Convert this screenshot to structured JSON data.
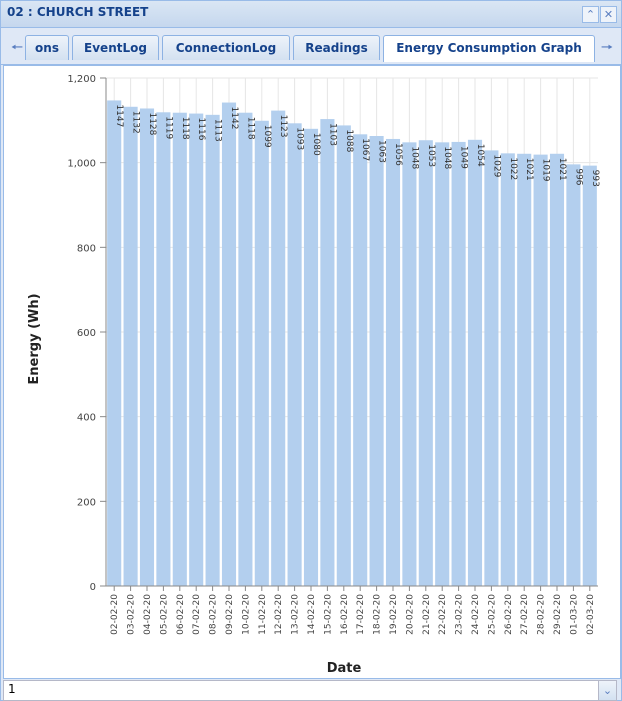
{
  "window": {
    "title": "02 : CHURCH STREET",
    "collapse_icon": "double-chevron-up-icon",
    "close_icon": "close-icon"
  },
  "tabs": {
    "scroll_left_icon": "arrow-left-icon",
    "scroll_right_icon": "arrow-right-icon",
    "items": [
      {
        "label": "ons",
        "active": false
      },
      {
        "label": "EventLog",
        "active": false
      },
      {
        "label": "ConnectionLog",
        "active": false
      },
      {
        "label": "Readings",
        "active": false
      },
      {
        "label": "Energy Consumption Graph",
        "active": true
      }
    ]
  },
  "chart_data": {
    "type": "bar",
    "xlabel": "Date",
    "ylabel": "Energy (Wh)",
    "ylim": [
      0,
      1200
    ],
    "yticks": [
      0,
      200,
      400,
      600,
      800,
      "1,000",
      "1,200"
    ],
    "bar_color": "#b3cfee",
    "categories": [
      "02-02-20",
      "03-02-20",
      "04-02-20",
      "05-02-20",
      "06-02-20",
      "07-02-20",
      "08-02-20",
      "09-02-20",
      "10-02-20",
      "11-02-20",
      "12-02-20",
      "13-02-20",
      "14-02-20",
      "15-02-20",
      "16-02-20",
      "17-02-20",
      "18-02-20",
      "19-02-20",
      "20-02-20",
      "21-02-20",
      "22-02-20",
      "23-02-20",
      "24-02-20",
      "25-02-20",
      "26-02-20",
      "27-02-20",
      "28-02-20",
      "29-02-20",
      "01-03-20",
      "02-03-20"
    ],
    "values": [
      1147,
      1132,
      1128,
      1119,
      1118,
      1116,
      1113,
      1142,
      1118,
      1099,
      1123,
      1093,
      1080,
      1103,
      1088,
      1067,
      1063,
      1056,
      1048,
      1053,
      1048,
      1049,
      1054,
      1029,
      1022,
      1021,
      1019,
      1021,
      996,
      993
    ]
  },
  "footer": {
    "value": "1",
    "dropdown_icon": "chevron-down-icon"
  }
}
